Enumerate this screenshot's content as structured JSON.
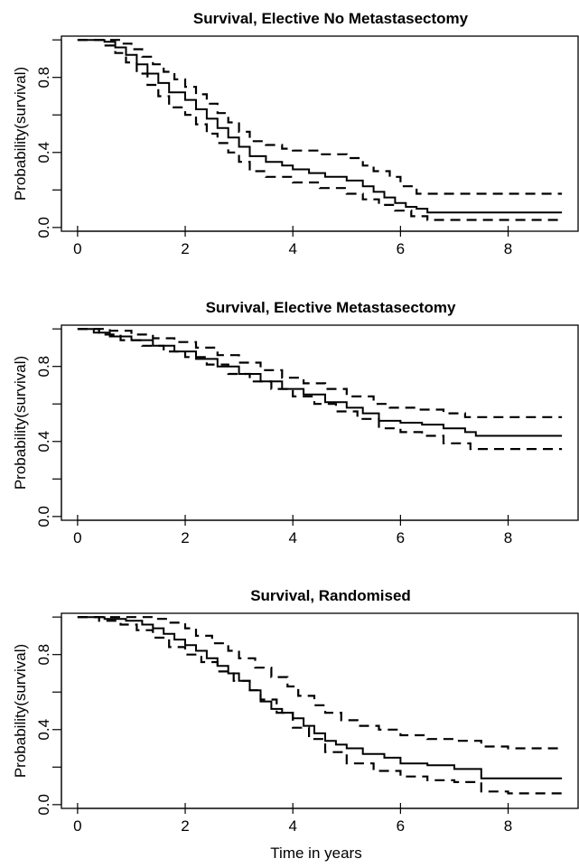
{
  "chart_data": [
    {
      "type": "line",
      "title": "Survival, Elective No Metastasectomy",
      "xlabel": "",
      "ylabel": "Probability(survival)",
      "xlim": [
        -0.3,
        9.3
      ],
      "ylim": [
        -0.02,
        1.02
      ],
      "x_ticks": [
        0,
        2,
        4,
        6,
        8
      ],
      "y_ticks": [
        0.0,
        0.4,
        0.8
      ],
      "y_minor_ticks": [
        0.2,
        0.6,
        1.0
      ],
      "grid": false,
      "series": [
        {
          "role": "estimate",
          "style": "solid",
          "x": [
            0,
            0.5,
            0.7,
            0.9,
            1.1,
            1.3,
            1.5,
            1.7,
            2.0,
            2.2,
            2.4,
            2.6,
            2.8,
            3.0,
            3.2,
            3.5,
            3.8,
            4.0,
            4.3,
            4.6,
            5.0,
            5.3,
            5.5,
            5.7,
            5.9,
            6.1,
            6.3,
            6.5,
            9.0
          ],
          "y": [
            1.0,
            0.99,
            0.96,
            0.92,
            0.87,
            0.82,
            0.77,
            0.72,
            0.68,
            0.63,
            0.58,
            0.53,
            0.48,
            0.43,
            0.38,
            0.35,
            0.33,
            0.31,
            0.29,
            0.27,
            0.25,
            0.22,
            0.19,
            0.16,
            0.13,
            0.11,
            0.1,
            0.08,
            0.08
          ]
        },
        {
          "role": "upper",
          "style": "dashed",
          "x": [
            0,
            0.6,
            0.8,
            1.0,
            1.2,
            1.4,
            1.6,
            1.8,
            2.0,
            2.2,
            2.4,
            2.6,
            2.8,
            3.0,
            3.2,
            3.5,
            3.8,
            4.0,
            4.5,
            5.0,
            5.3,
            5.5,
            5.8,
            6.0,
            6.3,
            9.0
          ],
          "y": [
            1.0,
            1.0,
            0.98,
            0.95,
            0.91,
            0.87,
            0.83,
            0.79,
            0.75,
            0.71,
            0.66,
            0.61,
            0.56,
            0.51,
            0.46,
            0.44,
            0.42,
            0.41,
            0.39,
            0.37,
            0.33,
            0.3,
            0.27,
            0.22,
            0.18,
            0.18
          ]
        },
        {
          "role": "lower",
          "style": "dashed",
          "x": [
            0,
            0.5,
            0.7,
            0.9,
            1.1,
            1.3,
            1.5,
            1.7,
            2.0,
            2.2,
            2.4,
            2.6,
            2.8,
            3.0,
            3.2,
            3.5,
            4.0,
            4.5,
            5.0,
            5.3,
            5.6,
            5.9,
            6.2,
            6.5,
            9.0
          ],
          "y": [
            1.0,
            0.97,
            0.93,
            0.88,
            0.82,
            0.76,
            0.7,
            0.64,
            0.6,
            0.55,
            0.5,
            0.45,
            0.4,
            0.35,
            0.3,
            0.27,
            0.24,
            0.21,
            0.18,
            0.15,
            0.12,
            0.09,
            0.06,
            0.04,
            0.04
          ]
        }
      ]
    },
    {
      "type": "line",
      "title": "Survival, Elective Metastasectomy",
      "xlabel": "",
      "ylabel": "Probability(survival)",
      "xlim": [
        -0.3,
        9.3
      ],
      "ylim": [
        -0.02,
        1.02
      ],
      "x_ticks": [
        0,
        2,
        4,
        6,
        8
      ],
      "y_ticks": [
        0.0,
        0.4,
        0.8
      ],
      "y_minor_ticks": [
        0.2,
        0.6,
        1.0
      ],
      "grid": false,
      "series": [
        {
          "role": "estimate",
          "style": "solid",
          "x": [
            0,
            0.3,
            0.6,
            1.0,
            1.4,
            1.8,
            2.2,
            2.6,
            3.0,
            3.4,
            3.8,
            4.2,
            4.6,
            5.0,
            5.3,
            5.6,
            6.0,
            6.4,
            6.8,
            7.2,
            7.4,
            9.0
          ],
          "y": [
            1.0,
            0.98,
            0.96,
            0.94,
            0.91,
            0.88,
            0.84,
            0.8,
            0.76,
            0.72,
            0.68,
            0.65,
            0.61,
            0.58,
            0.55,
            0.51,
            0.5,
            0.49,
            0.47,
            0.45,
            0.43,
            0.43
          ]
        },
        {
          "role": "upper",
          "style": "dashed",
          "x": [
            0,
            0.6,
            1.0,
            1.4,
            1.8,
            2.2,
            2.6,
            3.0,
            3.4,
            3.8,
            4.2,
            4.6,
            5.0,
            5.5,
            5.8,
            6.3,
            6.8,
            7.2,
            9.0
          ],
          "y": [
            1.0,
            0.99,
            0.97,
            0.95,
            0.93,
            0.9,
            0.86,
            0.82,
            0.78,
            0.74,
            0.71,
            0.68,
            0.64,
            0.6,
            0.58,
            0.57,
            0.55,
            0.53,
            0.53
          ]
        },
        {
          "role": "lower",
          "style": "dashed",
          "x": [
            0,
            0.4,
            0.8,
            1.2,
            1.6,
            2.0,
            2.4,
            2.8,
            3.2,
            3.6,
            4.0,
            4.4,
            4.8,
            5.2,
            5.6,
            6.0,
            6.4,
            6.8,
            7.3,
            9.0
          ],
          "y": [
            1.0,
            0.97,
            0.94,
            0.91,
            0.88,
            0.85,
            0.81,
            0.76,
            0.72,
            0.68,
            0.64,
            0.6,
            0.56,
            0.52,
            0.47,
            0.45,
            0.43,
            0.39,
            0.36,
            0.36
          ]
        }
      ]
    },
    {
      "type": "line",
      "title": "Survival, Randomised",
      "xlabel": "Time in years",
      "ylabel": "Probability(survival)",
      "xlim": [
        -0.3,
        9.3
      ],
      "ylim": [
        -0.02,
        1.02
      ],
      "x_ticks": [
        0,
        2,
        4,
        6,
        8
      ],
      "y_ticks": [
        0.0,
        0.4,
        0.8
      ],
      "y_minor_ticks": [
        0.2,
        0.6,
        1.0
      ],
      "grid": false,
      "series": [
        {
          "role": "estimate",
          "style": "solid",
          "x": [
            0,
            0.5,
            0.9,
            1.2,
            1.4,
            1.6,
            1.8,
            2.0,
            2.2,
            2.4,
            2.6,
            2.8,
            3.0,
            3.2,
            3.4,
            3.6,
            3.8,
            4.0,
            4.2,
            4.4,
            4.6,
            4.8,
            5.0,
            5.3,
            5.7,
            6.0,
            6.5,
            7.0,
            7.5,
            9.0
          ],
          "y": [
            1.0,
            0.99,
            0.98,
            0.96,
            0.94,
            0.91,
            0.88,
            0.85,
            0.82,
            0.78,
            0.74,
            0.7,
            0.66,
            0.61,
            0.55,
            0.51,
            0.49,
            0.46,
            0.42,
            0.38,
            0.34,
            0.32,
            0.3,
            0.27,
            0.25,
            0.22,
            0.21,
            0.19,
            0.14,
            0.14
          ]
        },
        {
          "role": "upper",
          "style": "dashed",
          "x": [
            0,
            0.9,
            1.4,
            1.7,
            2.0,
            2.2,
            2.5,
            2.8,
            3.0,
            3.3,
            3.6,
            3.9,
            4.1,
            4.4,
            4.6,
            4.9,
            5.2,
            5.6,
            6.0,
            6.5,
            7.0,
            7.5,
            8.0,
            9.0
          ],
          "y": [
            1.0,
            1.0,
            0.99,
            0.97,
            0.94,
            0.9,
            0.86,
            0.82,
            0.78,
            0.73,
            0.68,
            0.63,
            0.58,
            0.53,
            0.49,
            0.45,
            0.42,
            0.4,
            0.37,
            0.35,
            0.34,
            0.31,
            0.3,
            0.3
          ]
        },
        {
          "role": "lower",
          "style": "dashed",
          "x": [
            0,
            0.4,
            0.8,
            1.1,
            1.4,
            1.7,
            2.0,
            2.3,
            2.6,
            2.9,
            3.2,
            3.4,
            3.7,
            4.0,
            4.3,
            4.6,
            5.0,
            5.5,
            6.0,
            6.5,
            7.0,
            7.5,
            8.0,
            9.0
          ],
          "y": [
            1.0,
            0.98,
            0.96,
            0.93,
            0.89,
            0.84,
            0.8,
            0.76,
            0.71,
            0.66,
            0.61,
            0.56,
            0.49,
            0.41,
            0.35,
            0.28,
            0.22,
            0.18,
            0.15,
            0.13,
            0.12,
            0.07,
            0.06,
            0.06
          ]
        }
      ]
    }
  ]
}
